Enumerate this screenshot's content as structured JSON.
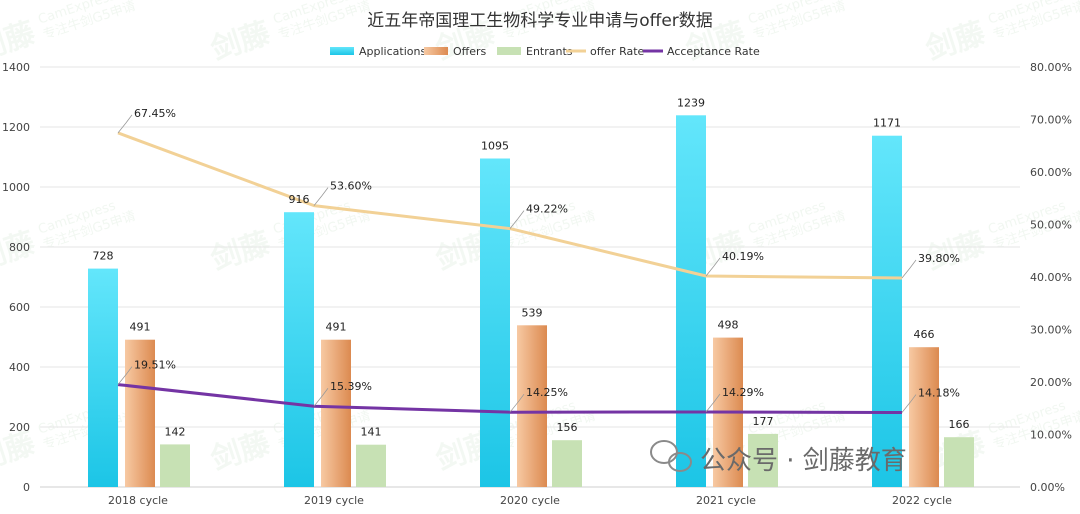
{
  "chart_data": {
    "type": "bar",
    "title": "近五年帝国理工生物科学专业申请与offer数据",
    "categories": [
      "2018 cycle",
      "2019 cycle",
      "2020 cycle",
      "2021 cycle",
      "2022 cycle"
    ],
    "series": [
      {
        "name": "Applications",
        "kind": "bar",
        "axis": "left",
        "values": [
          728,
          916,
          1095,
          1239,
          1171
        ]
      },
      {
        "name": "Offers",
        "kind": "bar",
        "axis": "left",
        "values": [
          491,
          491,
          539,
          498,
          466
        ]
      },
      {
        "name": "Entrants",
        "kind": "bar",
        "axis": "left",
        "values": [
          142,
          141,
          156,
          177,
          166
        ]
      },
      {
        "name": "offer Rate",
        "kind": "line",
        "axis": "right",
        "values": [
          67.45,
          53.6,
          49.22,
          40.19,
          39.8
        ],
        "labels": [
          "67.45%",
          "53.60%",
          "49.22%",
          "40.19%",
          "39.80%"
        ]
      },
      {
        "name": "Acceptance Rate",
        "kind": "line",
        "axis": "right",
        "values": [
          19.51,
          15.39,
          14.25,
          14.29,
          14.18
        ],
        "labels": [
          "19.51%",
          "15.39%",
          "14.25%",
          "14.29%",
          "14.18%"
        ]
      }
    ],
    "ylim_left": [
      0,
      1400
    ],
    "yticks_left": [
      "0",
      "200",
      "400",
      "600",
      "800",
      "1000",
      "1200",
      "1400"
    ],
    "ylim_right": [
      0,
      80
    ],
    "yticks_right": [
      "0.00%",
      "10.00%",
      "20.00%",
      "30.00%",
      "40.00%",
      "50.00%",
      "60.00%",
      "70.00%",
      "80.00%"
    ],
    "legend_position": "top",
    "grid": true
  },
  "colors": {
    "applications_top": "#63e6fb",
    "applications_bottom": "#1cc5e6",
    "offers_light": "#f7c9a3",
    "offers_dark": "#dc8a50",
    "entrants": "#c7e1b4",
    "offer_rate": "#f2d196",
    "acceptance_rate": "#7434a4",
    "grid": "#e6e6e6"
  },
  "watermark": {
    "main": "剑藤",
    "sub1": "CamExpress",
    "sub2": "专注牛剑G5申请"
  },
  "wechat": {
    "text": "公众号 · 剑藤教育",
    "icon": "wechat-icon"
  }
}
